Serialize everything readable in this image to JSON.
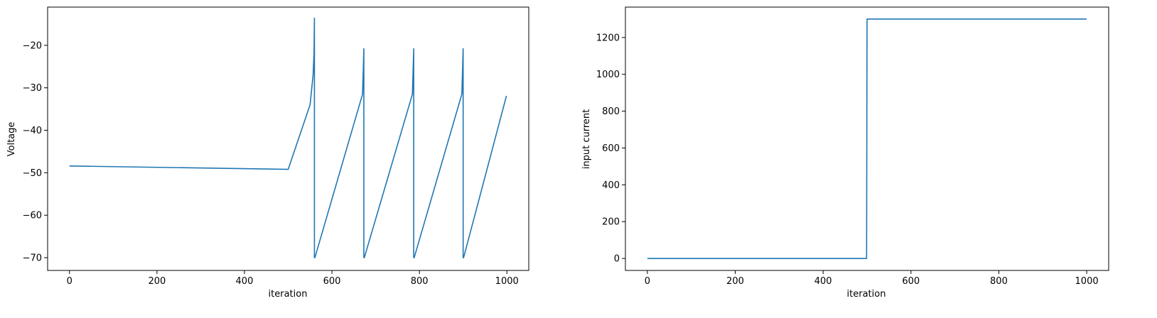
{
  "chart_data": [
    {
      "type": "line",
      "title": "",
      "xlabel": "iteration",
      "ylabel": "Voltage",
      "xlim": [
        -50,
        1050
      ],
      "ylim": [
        -73,
        -11
      ],
      "xticks": [
        0,
        200,
        400,
        600,
        800,
        1000
      ],
      "yticks": [
        -70,
        -60,
        -50,
        -40,
        -30,
        -20
      ],
      "grid": false,
      "color": "#1f77b4",
      "series": [
        {
          "x": [
            0,
            500,
            550,
            557,
            559,
            560,
            560,
            561,
            670,
            672,
            673,
            673,
            674,
            784,
            786,
            787,
            787,
            788,
            897,
            899,
            900,
            900,
            901,
            999
          ],
          "y": [
            -48.4,
            -49.2,
            -34.0,
            -27.0,
            -22.0,
            -13.6,
            -70.0,
            -70.0,
            -31.5,
            -24.5,
            -20.8,
            -70.0,
            -70.0,
            -31.5,
            -24.5,
            -20.8,
            -70.0,
            -70.0,
            -31.5,
            -24.5,
            -20.8,
            -70.0,
            -70.0,
            -31.9
          ]
        }
      ]
    },
    {
      "type": "line",
      "title": "",
      "xlabel": "iteration",
      "ylabel": "input current",
      "xlim": [
        -50,
        1050
      ],
      "ylim": [
        -65,
        1365
      ],
      "xticks": [
        0,
        200,
        400,
        600,
        800,
        1000
      ],
      "yticks": [
        0,
        200,
        400,
        600,
        800,
        1000,
        1200
      ],
      "grid": false,
      "color": "#1f77b4",
      "series": [
        {
          "x": [
            0,
            499,
            500,
            1000
          ],
          "y": [
            0,
            0,
            1300,
            1300
          ]
        }
      ]
    }
  ]
}
